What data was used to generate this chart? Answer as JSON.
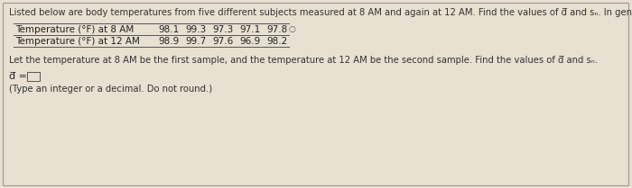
{
  "bg_color": "#e8e0d0",
  "border_color": "#999999",
  "title_text": "Listed below are body temperatures from five different subjects measured at 8 AM and again at 12 AM. Find the values of d̅ and sₙ. In general, what does μₙ represent?",
  "table_label_8am": "Temperature (°F) at 8 AM",
  "table_label_12am": "Temperature (°F) at 12 AM",
  "values_8am": [
    "98.1",
    "99.3",
    "97.3",
    "97.1",
    "97.8"
  ],
  "values_12am": [
    "98.9",
    "99.7",
    "97.6",
    "96.9",
    "98.2"
  ],
  "circle_symbol": "○",
  "body_text1": "Let the temperature at 8 AM be the first sample, and the temperature at 12 AM be the second sample. Find the values of d̅ and sₙ.",
  "input_label": "d̅ =",
  "footer_text": "(Type an integer or a decimal. Do not round.)",
  "title_fontsize": 7.2,
  "body_fontsize": 7.2,
  "table_fontsize": 7.5,
  "input_fontsize": 8.0
}
